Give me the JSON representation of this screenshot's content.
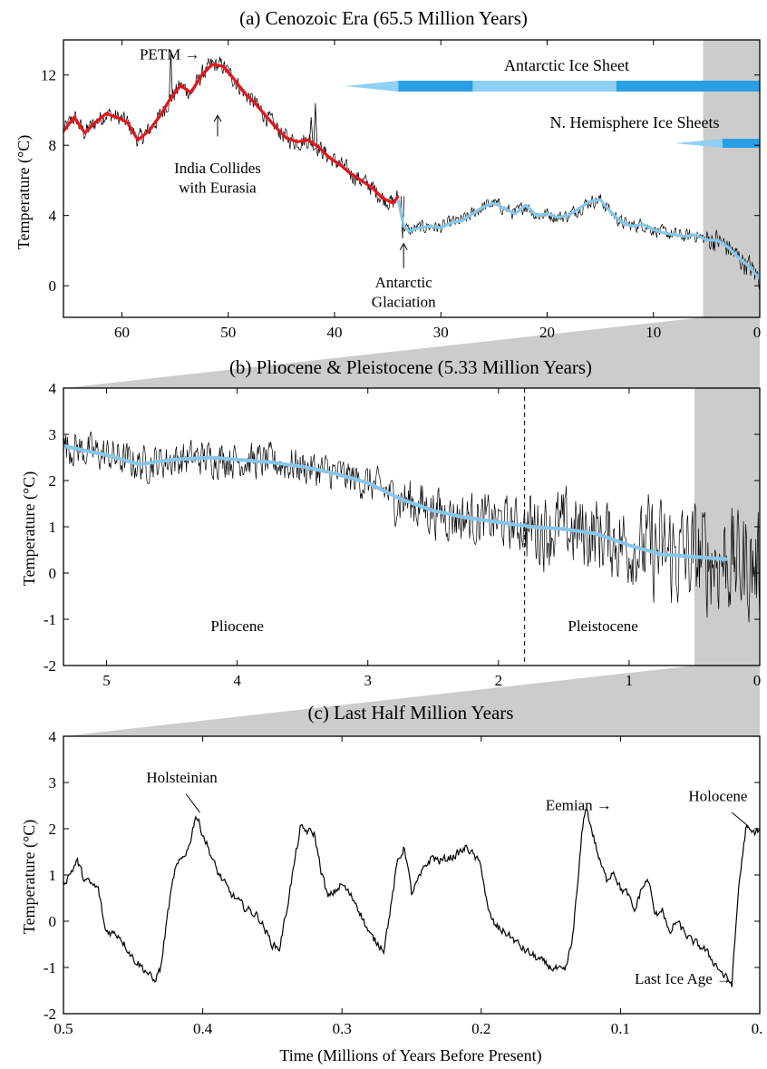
{
  "figure": {
    "xlabel": "Time (Millions of Years Before Present)"
  },
  "chart_data": [
    {
      "type": "line",
      "title": "(a) Cenozoic Era (65.5 Million Years)",
      "xlabel": "",
      "ylabel": "Temperature (°C)",
      "xlim": [
        65.5,
        0
      ],
      "ylim": [
        -1.8,
        14
      ],
      "x_ticks": [
        60,
        50,
        40,
        30,
        20,
        10,
        0
      ],
      "y_ticks": [
        0,
        4,
        8,
        12
      ],
      "shaded_region": [
        5.33,
        0
      ],
      "series": [
        {
          "style": "smoothed",
          "color": "#e8131b",
          "x": [
            65.5,
            64.5,
            63.5,
            62.5,
            61.5,
            60.5,
            59.5,
            58.5,
            57.5,
            56.5,
            55.5,
            54.5,
            53.5,
            52.5,
            51.5,
            50.5,
            49.5,
            48.5,
            47.5,
            46.5,
            45.5,
            44.5,
            43.5,
            42.5,
            41.5,
            40.5,
            39.5,
            38.5,
            37.5,
            36.5,
            35.5,
            34.5,
            34.0
          ],
          "values": [
            8.8,
            9.6,
            8.7,
            9.3,
            9.8,
            9.6,
            9.3,
            8.3,
            8.8,
            9.6,
            10.6,
            11.4,
            11.0,
            12.0,
            12.6,
            12.5,
            11.8,
            11.0,
            10.4,
            9.7,
            9.0,
            8.4,
            8.2,
            8.3,
            7.9,
            7.3,
            6.9,
            6.4,
            6.0,
            5.6,
            5.0,
            4.7,
            5.1
          ]
        },
        {
          "style": "smoothed",
          "color": "#86c7ea",
          "x": [
            34.0,
            33.5,
            33.0,
            32.0,
            31.0,
            30.0,
            29.0,
            28.0,
            27.0,
            26.0,
            25.0,
            24.0,
            23.0,
            22.0,
            21.0,
            20.0,
            19.0,
            18.0,
            17.0,
            16.0,
            15.0,
            14.0,
            13.0,
            12.0,
            11.0,
            10.0,
            9.0,
            8.0,
            7.0,
            6.0,
            5.0,
            4.0,
            3.0,
            2.0,
            1.0,
            0.0
          ],
          "values": [
            4.9,
            3.4,
            3.1,
            3.3,
            3.4,
            3.3,
            3.6,
            3.7,
            4.1,
            4.5,
            4.7,
            4.4,
            4.1,
            4.6,
            4.0,
            4.1,
            3.9,
            4.0,
            4.4,
            4.8,
            4.9,
            4.2,
            3.6,
            3.4,
            3.5,
            3.2,
            3.0,
            2.9,
            2.8,
            2.9,
            2.6,
            2.6,
            2.2,
            1.6,
            1.1,
            0.4
          ]
        }
      ],
      "annotations": [
        {
          "text": "PETM →",
          "x": 55.5,
          "y": 12.9
        },
        {
          "text": "India Collides",
          "x": 51.0,
          "y": 6.4
        },
        {
          "text": "with Eurasia",
          "x": 51.0,
          "y": 5.3
        },
        {
          "text": "Antarctic",
          "x": 33.5,
          "y": -0.1
        },
        {
          "text": "Glaciation",
          "x": 33.5,
          "y": -1.2
        }
      ],
      "ice_bars": [
        {
          "label": "Antarctic Ice Sheet",
          "start": 39.0,
          "end": 0,
          "segments": [
            {
              "from": 39.0,
              "to": 34.0,
              "color": "#8fd0f5",
              "taper": true
            },
            {
              "from": 34.0,
              "to": 27.0,
              "color": "#2a9fe6"
            },
            {
              "from": 27.0,
              "to": 13.5,
              "color": "#8fd0f5"
            },
            {
              "from": 13.5,
              "to": 0,
              "color": "#2a9fe6"
            }
          ]
        },
        {
          "label": "N. Hemisphere Ice Sheets",
          "start": 8.0,
          "end": 0,
          "segments": [
            {
              "from": 8.0,
              "to": 3.5,
              "color": "#8fd0f5",
              "taper": true
            },
            {
              "from": 3.5,
              "to": 0,
              "color": "#2a9fe6"
            }
          ]
        }
      ]
    },
    {
      "type": "line",
      "title": "(b) Pliocene & Pleistocene (5.33 Million Years)",
      "xlabel": "",
      "ylabel": "Temperature (°C)",
      "xlim": [
        5.33,
        0
      ],
      "ylim": [
        -2,
        4
      ],
      "x_ticks": [
        5,
        4,
        3,
        2,
        1,
        0
      ],
      "y_ticks": [
        -2,
        -1,
        0,
        1,
        2,
        3,
        4
      ],
      "divider_x": 1.8,
      "shaded_region": [
        0.5,
        0
      ],
      "series": [
        {
          "style": "smoothed",
          "color": "#86c7ea",
          "x": [
            5.33,
            5.0,
            4.75,
            4.5,
            4.2,
            4.0,
            3.75,
            3.5,
            3.25,
            3.0,
            2.75,
            2.5,
            2.25,
            2.0,
            1.75,
            1.5,
            1.25,
            1.0,
            0.75,
            0.5,
            0.25
          ],
          "values": [
            2.75,
            2.55,
            2.35,
            2.45,
            2.5,
            2.45,
            2.4,
            2.3,
            2.15,
            1.95,
            1.6,
            1.35,
            1.2,
            1.1,
            1.0,
            0.95,
            0.85,
            0.6,
            0.4,
            0.35,
            0.3
          ]
        }
      ],
      "annotations": [
        {
          "text": "Pliocene",
          "x": 4.0,
          "y": -1.25
        },
        {
          "text": "Pleistocene",
          "x": 1.2,
          "y": -1.25
        }
      ]
    },
    {
      "type": "line",
      "title": "(c) Last Half Million Years",
      "xlabel": "",
      "ylabel": "Temperature (°C)",
      "xlim": [
        0.5,
        0
      ],
      "ylim": [
        -2,
        4
      ],
      "x_ticks": [
        "0.5",
        "0.4",
        "0.3",
        "0.2",
        "0.1",
        "0."
      ],
      "x_tick_values": [
        0.5,
        0.4,
        0.3,
        0.2,
        0.1,
        0
      ],
      "y_ticks": [
        -2,
        -1,
        0,
        1,
        2,
        3,
        4
      ],
      "series": [
        {
          "style": "raw",
          "color": "#000000",
          "x": [
            0.5,
            0.49,
            0.485,
            0.475,
            0.47,
            0.46,
            0.45,
            0.44,
            0.435,
            0.43,
            0.425,
            0.42,
            0.41,
            0.405,
            0.4,
            0.39,
            0.38,
            0.37,
            0.36,
            0.35,
            0.345,
            0.34,
            0.335,
            0.33,
            0.32,
            0.315,
            0.31,
            0.3,
            0.29,
            0.28,
            0.27,
            0.265,
            0.26,
            0.255,
            0.25,
            0.24,
            0.235,
            0.23,
            0.22,
            0.21,
            0.2,
            0.195,
            0.19,
            0.18,
            0.17,
            0.16,
            0.15,
            0.14,
            0.135,
            0.13,
            0.128,
            0.125,
            0.12,
            0.115,
            0.11,
            0.105,
            0.1,
            0.095,
            0.09,
            0.085,
            0.08,
            0.075,
            0.07,
            0.065,
            0.06,
            0.05,
            0.04,
            0.03,
            0.025,
            0.02,
            0.018,
            0.015,
            0.012,
            0.01,
            0.005,
            0.0
          ],
          "values": [
            0.8,
            1.3,
            0.9,
            0.7,
            -0.2,
            -0.3,
            -0.8,
            -1.1,
            -1.3,
            -1.0,
            0.2,
            1.1,
            1.6,
            2.3,
            1.9,
            1.1,
            0.6,
            0.3,
            0.1,
            -0.5,
            -0.6,
            0.2,
            1.1,
            2.0,
            1.9,
            1.1,
            0.5,
            0.8,
            0.4,
            -0.3,
            -0.6,
            0.3,
            1.3,
            1.6,
            0.6,
            1.2,
            1.4,
            1.3,
            1.4,
            1.6,
            1.2,
            0.2,
            -0.1,
            -0.3,
            -0.6,
            -0.8,
            -1.0,
            -1.1,
            -0.5,
            1.0,
            1.8,
            2.5,
            1.9,
            1.3,
            0.9,
            1.1,
            0.7,
            0.6,
            0.2,
            0.7,
            0.9,
            0.1,
            0.3,
            -0.3,
            0.0,
            -0.4,
            -0.6,
            -1.0,
            -1.2,
            -1.35,
            -0.5,
            0.8,
            1.5,
            2.0,
            1.9,
            2.0
          ]
        }
      ],
      "annotations": [
        {
          "text": "Holsteinian",
          "x": 0.415,
          "y": 3.0
        },
        {
          "text": "Eemian →",
          "x": 0.13,
          "y": 2.4
        },
        {
          "text": "Holocene",
          "x": 0.03,
          "y": 2.6
        },
        {
          "text": "Last Ice Age →",
          "x": 0.055,
          "y": -1.35
        }
      ]
    }
  ]
}
